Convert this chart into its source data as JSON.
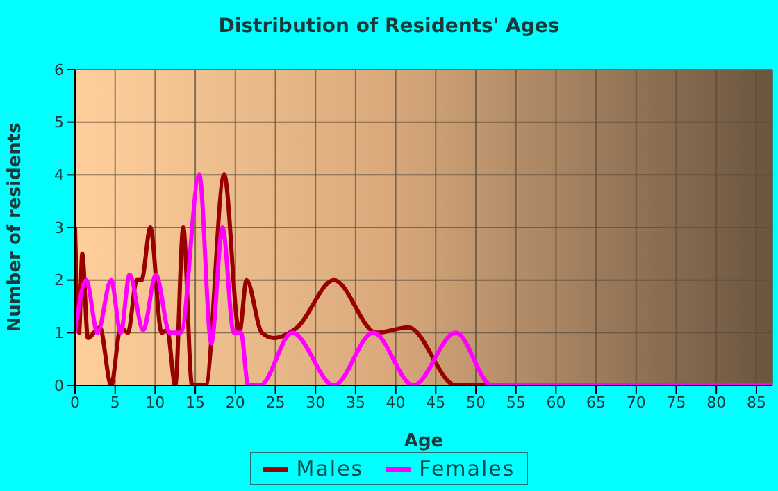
{
  "chart_data": {
    "type": "line",
    "title": "Distribution of Residents' Ages",
    "xlabel": "Age",
    "ylabel": "Number of residents",
    "xlim": [
      0,
      87
    ],
    "xticks": [
      0,
      5,
      10,
      15,
      20,
      25,
      30,
      35,
      40,
      45,
      50,
      55,
      60,
      65,
      70,
      75,
      80,
      85
    ],
    "ylim": [
      0,
      6
    ],
    "yticks": [
      0,
      1,
      2,
      3,
      4,
      5,
      6
    ],
    "grid": true,
    "legend": "bottom",
    "marker": "none",
    "line_style": "solid",
    "series": [
      {
        "name": "Males",
        "color": "#990000",
        "x": [
          0,
          0.5,
          0.9,
          1.6,
          3.1,
          4.5,
          5.7,
          6.6,
          7.7,
          8.3,
          9.4,
          10.8,
          11.5,
          12.5,
          13.5,
          14.6,
          16.3,
          18.6,
          20.5,
          21.4,
          23.3,
          24.8,
          27.7,
          32.3,
          37.6,
          41.6,
          47.5,
          60,
          87
        ],
        "values": [
          3,
          1,
          2.5,
          0.9,
          1.1,
          0,
          1.1,
          1,
          2,
          2,
          3,
          1,
          1.05,
          0,
          3,
          0,
          0,
          4,
          1,
          2,
          1,
          0.9,
          1.1,
          2,
          1,
          1.1,
          0,
          0,
          0
        ]
      },
      {
        "name": "Females",
        "color": "#ff00ff",
        "x": [
          0,
          1.4,
          2.8,
          4.5,
          5.7,
          6.8,
          8.5,
          10.1,
          11.8,
          13.2,
          15.5,
          17,
          18.4,
          19.8,
          20.7,
          21.6,
          23.1,
          27.1,
          32.3,
          37.2,
          42.2,
          47.5,
          52,
          87
        ],
        "values": [
          1,
          2,
          1,
          2,
          1,
          2.1,
          1.05,
          2.1,
          1,
          1,
          4,
          0.8,
          3,
          1,
          1,
          0,
          0,
          1,
          0,
          1,
          0,
          1,
          0,
          0
        ]
      }
    ]
  }
}
